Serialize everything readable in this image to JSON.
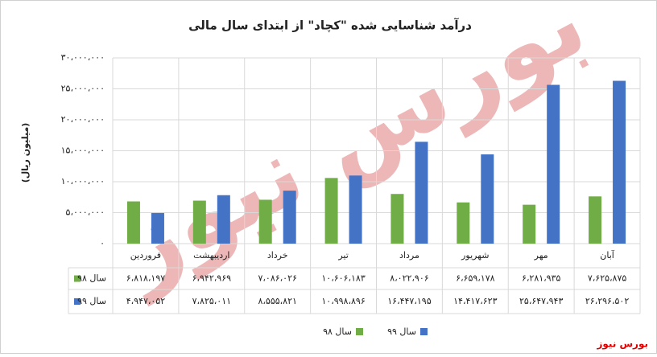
{
  "chart_data": {
    "type": "bar",
    "title": "درآمد شناسایی شده \"کچاد\" از ابتدای سال مالی",
    "ylabel": "(میلیون ریال)",
    "categories": [
      "فروردین",
      "اردیبهشت",
      "خرداد",
      "تیر",
      "مرداد",
      "شهریور",
      "مهر",
      "آبان"
    ],
    "series": [
      {
        "name": "سال ۹۸",
        "color": "#70ad47",
        "values": [
          6818197,
          6942969,
          7086026,
          10606183,
          8022906,
          6659178,
          6281935,
          7625875
        ],
        "value_labels": [
          "۶،۸۱۸،۱۹۷",
          "۶،۹۴۲،۹۶۹",
          "۷،۰۸۶،۰۲۶",
          "۱۰،۶۰۶،۱۸۳",
          "۸،۰۲۲،۹۰۶",
          "۶،۶۵۹،۱۷۸",
          "۶،۲۸۱،۹۳۵",
          "۷،۶۲۵،۸۷۵"
        ]
      },
      {
        "name": "سال ۹۹",
        "color": "#4472c4",
        "values": [
          4947052,
          7825011,
          8555821,
          10998896,
          16447195,
          14417623,
          25647943,
          26296502
        ],
        "value_labels": [
          "۴،۹۴۷،۰۵۲",
          "۷،۸۲۵،۰۱۱",
          "۸،۵۵۵،۸۲۱",
          "۱۰،۹۹۸،۸۹۶",
          "۱۶،۴۴۷،۱۹۵",
          "۱۴،۴۱۷،۶۲۳",
          "۲۵،۶۴۷،۹۴۳",
          "۲۶،۲۹۶،۵۰۲"
        ]
      }
    ],
    "ylim": [
      0,
      30000000
    ],
    "yticks": [
      {
        "value": 0,
        "label": "۰"
      },
      {
        "value": 5000000,
        "label": "۵،۰۰۰،۰۰۰"
      },
      {
        "value": 10000000,
        "label": "۱۰،۰۰۰،۰۰۰"
      },
      {
        "value": 15000000,
        "label": "۱۵،۰۰۰،۰۰۰"
      },
      {
        "value": 20000000,
        "label": "۲۰،۰۰۰،۰۰۰"
      },
      {
        "value": 25000000,
        "label": "۲۵،۰۰۰،۰۰۰"
      },
      {
        "value": 30000000,
        "label": "۳۰،۰۰۰،۰۰۰"
      }
    ],
    "grid": true,
    "watermark": "بورس نیوز",
    "source": "بورس نیوز"
  }
}
